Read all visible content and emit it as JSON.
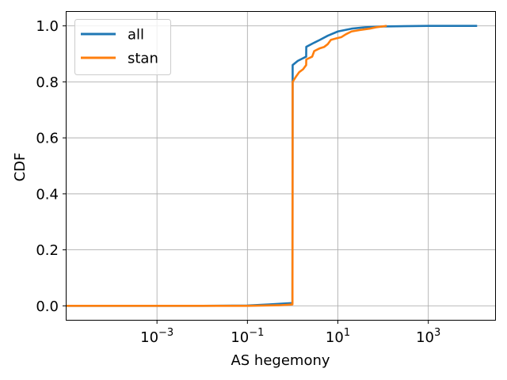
{
  "chart_data": {
    "type": "line",
    "title": "",
    "xlabel": "AS hegemony",
    "ylabel": "CDF",
    "xscale": "log",
    "xlim": [
      1e-05,
      30000
    ],
    "ylim": [
      -0.05,
      1.05
    ],
    "grid": true,
    "legend_position": "top-left",
    "x_ticks": [
      {
        "value": 0.001,
        "base": "10",
        "exp": "−3"
      },
      {
        "value": 0.1,
        "base": "10",
        "exp": "−1"
      },
      {
        "value": 10,
        "base": "10",
        "exp": "1"
      },
      {
        "value": 1000,
        "base": "10",
        "exp": "3"
      }
    ],
    "y_ticks": [
      {
        "value": 0.0,
        "label": "0.0"
      },
      {
        "value": 0.2,
        "label": "0.2"
      },
      {
        "value": 0.4,
        "label": "0.4"
      },
      {
        "value": 0.6,
        "label": "0.6"
      },
      {
        "value": 0.8,
        "label": "0.8"
      },
      {
        "value": 1.0,
        "label": "1.0"
      }
    ],
    "series": [
      {
        "name": "all",
        "color": "#1f77b4",
        "points": [
          [
            1e-05,
            0.0
          ],
          [
            0.01,
            0.0
          ],
          [
            0.1,
            0.001
          ],
          [
            0.3,
            0.005
          ],
          [
            0.99,
            0.01
          ],
          [
            1.0,
            0.86
          ],
          [
            1.3,
            0.875
          ],
          [
            1.99,
            0.89
          ],
          [
            2.0,
            0.925
          ],
          [
            3.0,
            0.94
          ],
          [
            4.0,
            0.95
          ],
          [
            6.0,
            0.965
          ],
          [
            10,
            0.98
          ],
          [
            20,
            0.99
          ],
          [
            40,
            0.995
          ],
          [
            100,
            0.998
          ],
          [
            1000,
            1.0
          ],
          [
            12000,
            1.0
          ]
        ]
      },
      {
        "name": "stan",
        "color": "#ff7f0e",
        "points": [
          [
            1e-05,
            0.0
          ],
          [
            0.01,
            0.0
          ],
          [
            0.1,
            0.0
          ],
          [
            0.5,
            0.002
          ],
          [
            0.99,
            0.005
          ],
          [
            1.0,
            0.8
          ],
          [
            1.2,
            0.82
          ],
          [
            1.4,
            0.835
          ],
          [
            1.7,
            0.845
          ],
          [
            1.99,
            0.86
          ],
          [
            2.0,
            0.88
          ],
          [
            2.7,
            0.89
          ],
          [
            3.0,
            0.91
          ],
          [
            4.0,
            0.92
          ],
          [
            5.0,
            0.925
          ],
          [
            6.0,
            0.935
          ],
          [
            7.0,
            0.95
          ],
          [
            9.0,
            0.955
          ],
          [
            12,
            0.96
          ],
          [
            15,
            0.97
          ],
          [
            20,
            0.98
          ],
          [
            30,
            0.985
          ],
          [
            50,
            0.99
          ],
          [
            70,
            0.995
          ],
          [
            120,
            1.0
          ]
        ]
      }
    ]
  }
}
